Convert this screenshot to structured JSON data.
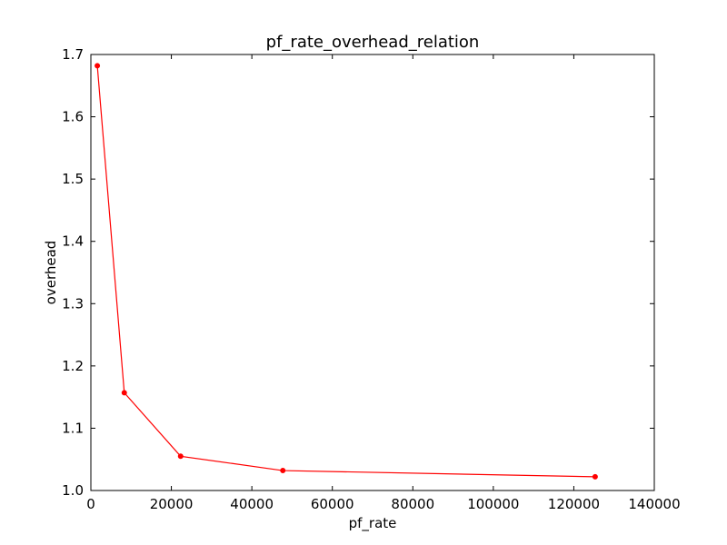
{
  "chart_data": {
    "type": "line",
    "title": "pf_rate_overhead_relation",
    "xlabel": "pf_rate",
    "ylabel": "overhead",
    "xlim": [
      0,
      140000
    ],
    "ylim": [
      1.0,
      1.7
    ],
    "x_ticks": [
      "0",
      "20000",
      "40000",
      "60000",
      "80000",
      "100000",
      "120000",
      "140000"
    ],
    "y_ticks": [
      "1.0",
      "1.1",
      "1.2",
      "1.3",
      "1.4",
      "1.5",
      "1.6",
      "1.7"
    ],
    "grid": false,
    "series": [
      {
        "color": "#ff0000",
        "marker": "point",
        "x": [
          1600,
          8300,
          22300,
          47700,
          125300
        ],
        "y": [
          1.682,
          1.157,
          1.055,
          1.032,
          1.022
        ]
      }
    ]
  }
}
